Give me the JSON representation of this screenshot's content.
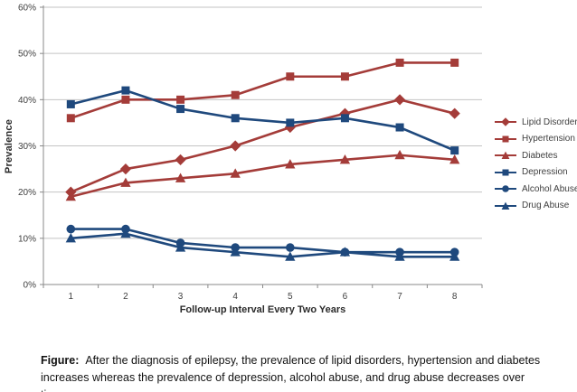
{
  "chart_data": {
    "type": "line",
    "title": "",
    "xlabel": "Follow-up Interval Every Two Years",
    "ylabel": "Prevalence",
    "categories": [
      "1",
      "2",
      "3",
      "4",
      "5",
      "6",
      "7",
      "8"
    ],
    "ylim": [
      0,
      60
    ],
    "ytick_step": 10,
    "yticks": [
      "0%",
      "10%",
      "20%",
      "30%",
      "40%",
      "50%",
      "60%"
    ],
    "grid": "horizontal",
    "legend_position": "right",
    "series": [
      {
        "name": "Lipid Disorders",
        "color": "#a43c39",
        "marker": "diamond",
        "values": [
          20,
          25,
          27,
          30,
          34,
          37,
          40,
          37
        ]
      },
      {
        "name": "Hypertension",
        "color": "#a43c39",
        "marker": "square",
        "values": [
          36,
          40,
          40,
          41,
          45,
          45,
          48,
          48
        ]
      },
      {
        "name": "Diabetes",
        "color": "#a43c39",
        "marker": "triangle",
        "values": [
          19,
          22,
          23,
          24,
          26,
          27,
          28,
          27
        ]
      },
      {
        "name": "Depression",
        "color": "#1f497d",
        "marker": "square",
        "values": [
          39,
          42,
          38,
          36,
          35,
          36,
          34,
          29
        ]
      },
      {
        "name": "Alcohol Abuse",
        "color": "#1f497d",
        "marker": "circle",
        "values": [
          12,
          12,
          9,
          8,
          8,
          7,
          7,
          7
        ]
      },
      {
        "name": "Drug Abuse",
        "color": "#1f497d",
        "marker": "triangle",
        "values": [
          10,
          11,
          8,
          7,
          6,
          7,
          6,
          6
        ]
      }
    ],
    "axis_color": "#898989",
    "gridline_color": "#c3c3c3",
    "tick_label_color": "#3f3f3f"
  },
  "caption": {
    "label": "Figure:",
    "text": "After the diagnosis of epilepsy, the prevalence of lipid disorders, hypertension and diabetes increases whereas the prevalence of depression, alcohol abuse, and drug abuse decreases over time."
  }
}
